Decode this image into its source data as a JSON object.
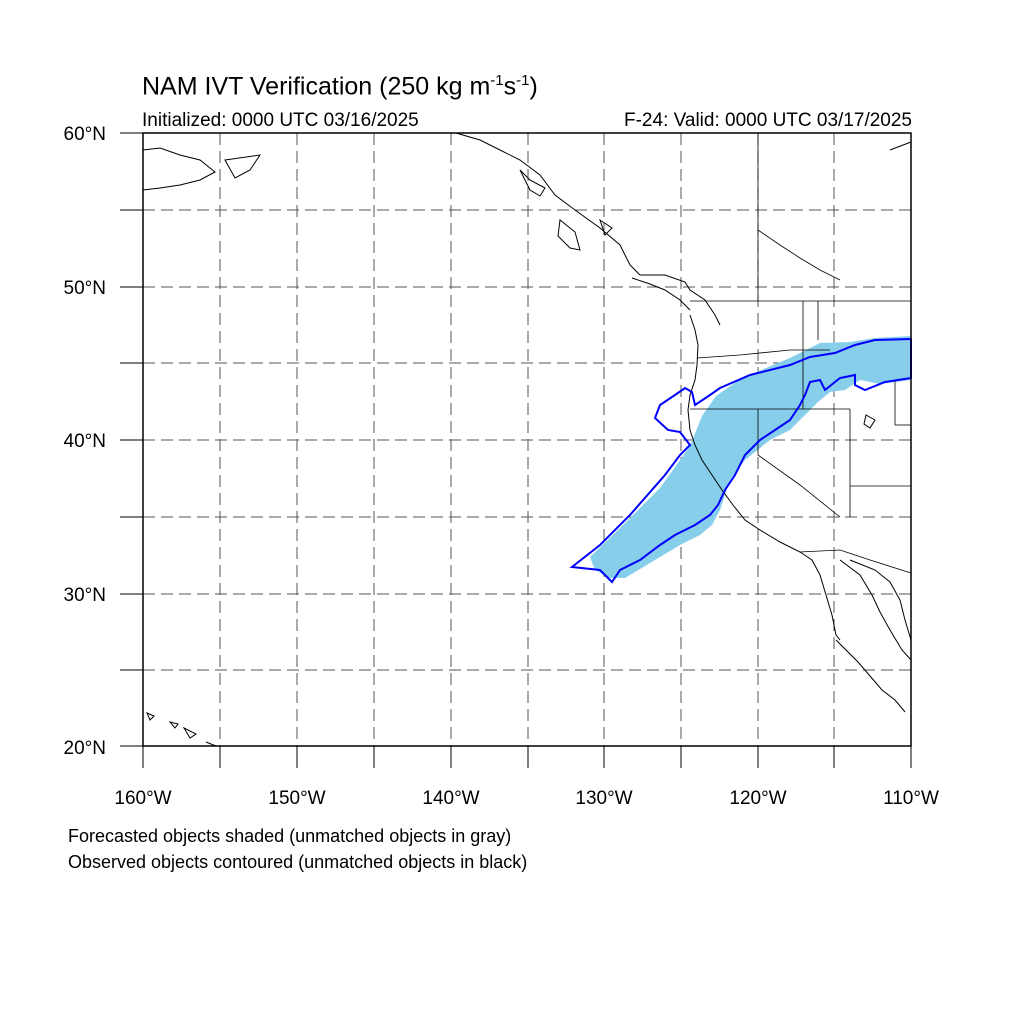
{
  "title": {
    "main": "NAM IVT Verification (250 kg m",
    "exp1": "-1",
    "mid": "s",
    "exp2": "-1",
    "close": ")"
  },
  "subtitle": {
    "left": "Initialized: 0000 UTC 03/16/2025",
    "right": "F-24: Valid: 0000 UTC 03/17/2025"
  },
  "footer": {
    "line1": "Forecasted objects shaded (unmatched objects in gray)",
    "line2": "Observed objects contoured (unmatched objects in black)"
  },
  "map": {
    "lat_labels": [
      "60°N",
      "50°N",
      "40°N",
      "30°N",
      "20°N"
    ],
    "lon_labels": [
      "160°W",
      "150°W",
      "140°W",
      "130°W",
      "120°W",
      "110°W"
    ],
    "lon_range": [
      -160,
      -110
    ],
    "lat_range": [
      20,
      60
    ],
    "colors": {
      "forecast_fill": "#87ceeb",
      "observed_contour": "#0000ff",
      "coastline": "#000000",
      "grid": "#555555"
    }
  }
}
